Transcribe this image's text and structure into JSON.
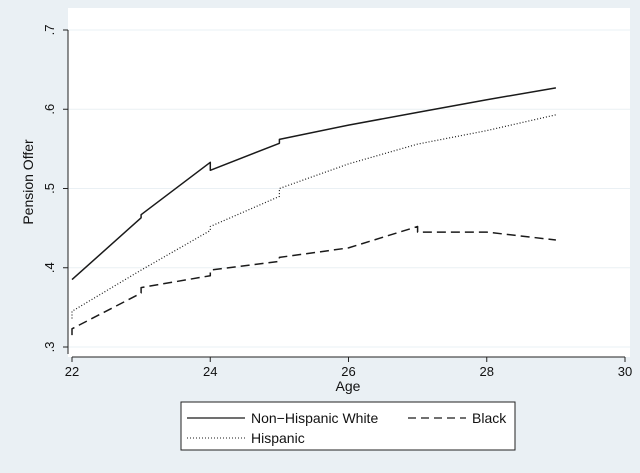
{
  "chart_data": {
    "type": "line",
    "xlabel": "Age",
    "ylabel": "Pension Offer",
    "xlim": [
      22,
      30
    ],
    "ylim": [
      0.3,
      0.7
    ],
    "x_ticks": [
      22,
      24,
      26,
      28,
      30
    ],
    "x_tick_labels": [
      "22",
      "24",
      "26",
      "28",
      "30"
    ],
    "y_ticks": [
      0.3,
      0.4,
      0.5,
      0.6,
      0.7
    ],
    "y_tick_labels": [
      ".3",
      ".4",
      ".5",
      ".6",
      ".7"
    ],
    "grid": true,
    "legend_position": "bottom",
    "series": [
      {
        "name": "Non−Hispanic White",
        "style": "solid",
        "points": [
          [
            22,
            0.385
          ],
          [
            23,
            0.463
          ],
          [
            23,
            0.467
          ],
          [
            24,
            0.533
          ],
          [
            24,
            0.523
          ],
          [
            25,
            0.557
          ],
          [
            25,
            0.562
          ],
          [
            26,
            0.58
          ],
          [
            27,
            0.596
          ],
          [
            28,
            0.612
          ],
          [
            29,
            0.627
          ]
        ]
      },
      {
        "name": "Black",
        "style": "dashed",
        "points": [
          [
            22,
            0.315
          ],
          [
            22,
            0.323
          ],
          [
            23,
            0.368
          ],
          [
            23,
            0.375
          ],
          [
            24,
            0.39
          ],
          [
            24,
            0.397
          ],
          [
            25,
            0.408
          ],
          [
            25,
            0.413
          ],
          [
            26,
            0.425
          ],
          [
            27,
            0.452
          ],
          [
            27,
            0.445
          ],
          [
            28,
            0.445
          ],
          [
            29,
            0.435
          ]
        ]
      },
      {
        "name": "Hispanic",
        "style": "dotted",
        "points": [
          [
            22,
            0.336
          ],
          [
            22,
            0.345
          ],
          [
            23,
            0.397
          ],
          [
            24,
            0.447
          ],
          [
            24,
            0.452
          ],
          [
            25,
            0.49
          ],
          [
            25,
            0.5
          ],
          [
            26,
            0.531
          ],
          [
            27,
            0.556
          ],
          [
            28,
            0.573
          ],
          [
            29,
            0.593
          ]
        ]
      }
    ],
    "colors": {
      "background": "#eaf0f4",
      "plot_area": "#ffffff",
      "line": "#1a1a1a"
    }
  }
}
